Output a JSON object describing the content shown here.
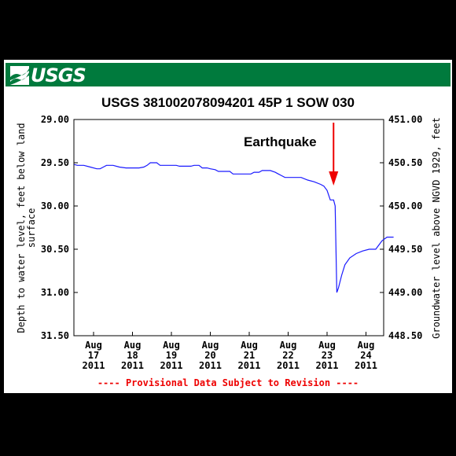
{
  "header": {
    "logo_text": "USGS",
    "brand_color": "#007a3d"
  },
  "chart_data": {
    "type": "line",
    "title": "USGS 381002078094201 45P  1 SOW 030",
    "ylabel_left_line1": "Depth to water level, feet below land",
    "ylabel_left_line2": "surface",
    "ylabel_right": "Groundwater level above NGVD 1929, feet",
    "ylim_left": [
      29.0,
      31.5
    ],
    "ylim_right": [
      448.5,
      451.0
    ],
    "y_ticks_left": [
      "29.00",
      "29.50",
      "30.00",
      "30.50",
      "31.00",
      "31.50"
    ],
    "y_ticks_right": [
      "451.00",
      "450.50",
      "450.00",
      "449.50",
      "449.00",
      "448.50"
    ],
    "x_ticks": [
      {
        "month": "Aug",
        "day": "17",
        "year": "2011"
      },
      {
        "month": "Aug",
        "day": "18",
        "year": "2011"
      },
      {
        "month": "Aug",
        "day": "19",
        "year": "2011"
      },
      {
        "month": "Aug",
        "day": "20",
        "year": "2011"
      },
      {
        "month": "Aug",
        "day": "21",
        "year": "2011"
      },
      {
        "month": "Aug",
        "day": "22",
        "year": "2011"
      },
      {
        "month": "Aug",
        "day": "23",
        "year": "2011"
      },
      {
        "month": "Aug",
        "day": "24",
        "year": "2011"
      }
    ],
    "series": [
      {
        "color": "#1a1aff",
        "points": [
          [
            "2011-08-16 12:00",
            29.52
          ],
          [
            "2011-08-16 14:00",
            29.53
          ],
          [
            "2011-08-16 18:00",
            29.53
          ],
          [
            "2011-08-16 22:00",
            29.55
          ],
          [
            "2011-08-17 02:00",
            29.57
          ],
          [
            "2011-08-17 04:00",
            29.57
          ],
          [
            "2011-08-17 06:00",
            29.55
          ],
          [
            "2011-08-17 08:00",
            29.53
          ],
          [
            "2011-08-17 12:00",
            29.53
          ],
          [
            "2011-08-17 16:00",
            29.55
          ],
          [
            "2011-08-17 20:00",
            29.56
          ],
          [
            "2011-08-18 04:00",
            29.56
          ],
          [
            "2011-08-18 07:00",
            29.55
          ],
          [
            "2011-08-18 09:00",
            29.53
          ],
          [
            "2011-08-18 11:00",
            29.5
          ],
          [
            "2011-08-18 15:00",
            29.5
          ],
          [
            "2011-08-18 17:00",
            29.53
          ],
          [
            "2011-08-19 03:00",
            29.53
          ],
          [
            "2011-08-19 05:00",
            29.54
          ],
          [
            "2011-08-19 12:00",
            29.54
          ],
          [
            "2011-08-19 14:00",
            29.53
          ],
          [
            "2011-08-19 17:00",
            29.53
          ],
          [
            "2011-08-19 19:00",
            29.56
          ],
          [
            "2011-08-19 22:00",
            29.56
          ],
          [
            "2011-08-20 00:00",
            29.57
          ],
          [
            "2011-08-20 03:00",
            29.58
          ],
          [
            "2011-08-20 05:00",
            29.6
          ],
          [
            "2011-08-20 12:00",
            29.6
          ],
          [
            "2011-08-20 14:00",
            29.63
          ],
          [
            "2011-08-21 01:00",
            29.63
          ],
          [
            "2011-08-21 03:00",
            29.61
          ],
          [
            "2011-08-21 06:00",
            29.61
          ],
          [
            "2011-08-21 08:00",
            29.59
          ],
          [
            "2011-08-21 13:00",
            29.59
          ],
          [
            "2011-08-21 16:00",
            29.61
          ],
          [
            "2011-08-21 18:00",
            29.63
          ],
          [
            "2011-08-21 20:00",
            29.65
          ],
          [
            "2011-08-21 22:00",
            29.67
          ],
          [
            "2011-08-22 08:00",
            29.67
          ],
          [
            "2011-08-22 12:00",
            29.7
          ],
          [
            "2011-08-22 16:00",
            29.72
          ],
          [
            "2011-08-22 20:00",
            29.75
          ],
          [
            "2011-08-22 22:00",
            29.77
          ],
          [
            "2011-08-23 00:00",
            29.82
          ],
          [
            "2011-08-23 02:00",
            29.93
          ],
          [
            "2011-08-23 04:00",
            29.93
          ],
          [
            "2011-08-23 05:00",
            30.0
          ],
          [
            "2011-08-23 06:00",
            31.0
          ],
          [
            "2011-08-23 07:00",
            30.95
          ],
          [
            "2011-08-23 09:00",
            30.8
          ],
          [
            "2011-08-23 11:00",
            30.68
          ],
          [
            "2011-08-23 14:00",
            30.6
          ],
          [
            "2011-08-23 18:00",
            30.55
          ],
          [
            "2011-08-23 22:00",
            30.52
          ],
          [
            "2011-08-24 02:00",
            30.5
          ],
          [
            "2011-08-24 06:00",
            30.5
          ],
          [
            "2011-08-24 08:00",
            30.45
          ],
          [
            "2011-08-24 10:00",
            30.4
          ],
          [
            "2011-08-24 13:00",
            30.36
          ],
          [
            "2011-08-24 17:00",
            30.36
          ]
        ]
      }
    ],
    "annotation": {
      "text": "Earthquake",
      "arrow_color": "#ee0000",
      "target_date": "2011-08-23 04:00"
    },
    "footnote": "---- Provisional Data Subject to Revision ----",
    "footnote_color": "#ee0000"
  }
}
